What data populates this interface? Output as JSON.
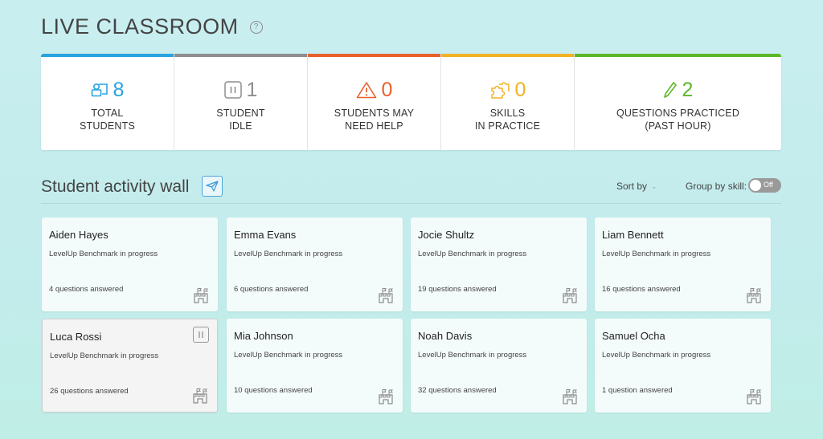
{
  "header": {
    "title": "LIVE CLASSROOM"
  },
  "stats": [
    {
      "value": "8",
      "label_line1": "TOTAL",
      "label_line2": "STUDENTS",
      "color": "#29a3df",
      "icon": "students-icon"
    },
    {
      "value": "1",
      "label_line1": "STUDENT",
      "label_line2": "IDLE",
      "color": "#8e8e8e",
      "icon": "pause-icon"
    },
    {
      "value": "0",
      "label_line1": "STUDENTS MAY",
      "label_line2": "NEED HELP",
      "color": "#e8612c",
      "icon": "warning-icon"
    },
    {
      "value": "0",
      "label_line1": "SKILLS",
      "label_line2": "IN PRACTICE",
      "color": "#f0b323",
      "icon": "puzzle-icon"
    },
    {
      "value": "2",
      "label_line1": "QUESTIONS PRACTICED",
      "label_line2": "(PAST HOUR)",
      "color": "#5cb82b",
      "icon": "pencil-icon"
    }
  ],
  "wall": {
    "title": "Student activity wall",
    "sort_label": "Sort by",
    "group_label": "Group by skill:",
    "toggle_label": "Off"
  },
  "students": [
    {
      "name": "Aiden Hayes",
      "status": "LevelUp Benchmark in progress",
      "answered": "4 questions answered",
      "idle": false
    },
    {
      "name": "Emma Evans",
      "status": "LevelUp Benchmark in progress",
      "answered": "6 questions answered",
      "idle": false
    },
    {
      "name": "Jocie Shultz",
      "status": "LevelUp Benchmark in progress",
      "answered": "19 questions answered",
      "idle": false
    },
    {
      "name": "Liam Bennett",
      "status": "LevelUp Benchmark in progress",
      "answered": "16 questions answered",
      "idle": false
    },
    {
      "name": "Luca Rossi",
      "status": "LevelUp Benchmark in progress",
      "answered": "26 questions answered",
      "idle": true
    },
    {
      "name": "Mia Johnson",
      "status": "LevelUp Benchmark in progress",
      "answered": "10 questions answered",
      "idle": false
    },
    {
      "name": "Noah Davis",
      "status": "LevelUp Benchmark in progress",
      "answered": "32 questions answered",
      "idle": false
    },
    {
      "name": "Samuel Ocha",
      "status": "LevelUp Benchmark in progress",
      "answered": "1 question answered",
      "idle": false
    }
  ]
}
